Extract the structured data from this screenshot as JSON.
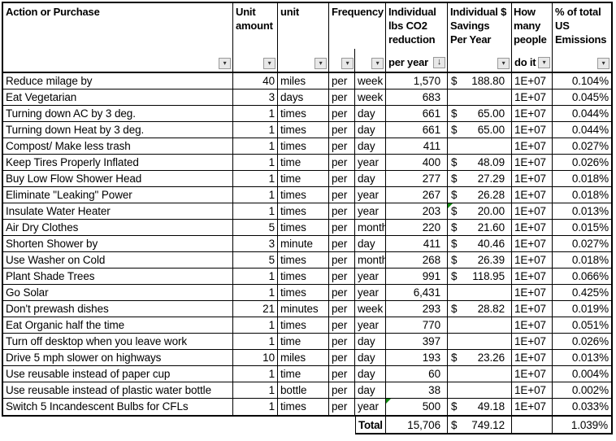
{
  "labels": {
    "per": "per",
    "dollar_sign": "$"
  },
  "icons": {
    "filter_arrow": "▾",
    "sort_arrow": "↓"
  },
  "colors": {
    "border": "#000000",
    "background": "#ffffff",
    "button_bg": "#e8e8e8",
    "button_border": "#999999",
    "button_arrow": "#333333",
    "error_indicator": "#0f8a0f"
  },
  "header": {
    "action": "Action or Purchase",
    "unit_amount": "Unit amount",
    "unit": "unit",
    "frequency": "Frequency",
    "co2_top": "Individual lbs CO2 reduction",
    "co2_bottom": "per year",
    "dollar": "Individual $ Savings Per Year",
    "people_top": "How many people",
    "people_bottom": "do it",
    "emissions": "% of total US Emissions"
  },
  "rows": [
    {
      "action": "Reduce milage by",
      "amount": "40",
      "unit": "miles",
      "freq": "week",
      "co2": "1,570",
      "dollar": "188.80",
      "people": "1E+07",
      "pct": "0.104%"
    },
    {
      "action": "Eat Vegetarian",
      "amount": "3",
      "unit": "days",
      "freq": "week",
      "co2": "683",
      "dollar": "",
      "people": "1E+07",
      "pct": "0.045%"
    },
    {
      "action": "Turning down AC by 3 deg.",
      "amount": "1",
      "unit": "times",
      "freq": "day",
      "co2": "661",
      "dollar": "65.00",
      "people": "1E+07",
      "pct": "0.044%"
    },
    {
      "action": "Turning down Heat by 3 deg.",
      "amount": "1",
      "unit": "times",
      "freq": "day",
      "co2": "661",
      "dollar": "65.00",
      "people": "1E+07",
      "pct": "0.044%"
    },
    {
      "action": "Compost/ Make less trash",
      "amount": "1",
      "unit": "times",
      "freq": "day",
      "co2": "411",
      "dollar": "",
      "people": "1E+07",
      "pct": "0.027%"
    },
    {
      "action": "Keep Tires Properly Inflated",
      "amount": "1",
      "unit": "time",
      "freq": "year",
      "co2": "400",
      "dollar": "48.09",
      "people": "1E+07",
      "pct": "0.026%"
    },
    {
      "action": "Buy Low Flow Shower Head",
      "amount": "1",
      "unit": "time",
      "freq": "day",
      "co2": "277",
      "dollar": "27.29",
      "people": "1E+07",
      "pct": "0.018%"
    },
    {
      "action": "Eliminate \"Leaking\" Power",
      "amount": "1",
      "unit": "times",
      "freq": "year",
      "co2": "267",
      "dollar": "26.28",
      "people": "1E+07",
      "pct": "0.018%"
    },
    {
      "action": "Insulate Water Heater",
      "amount": "1",
      "unit": "times",
      "freq": "year",
      "co2": "203",
      "dollar": "20.00",
      "people": "1E+07",
      "pct": "0.013%",
      "corner": "dollar"
    },
    {
      "action": "Air Dry Clothes",
      "amount": "5",
      "unit": "times",
      "freq": "month",
      "co2": "220",
      "dollar": "21.60",
      "people": "1E+07",
      "pct": "0.015%"
    },
    {
      "action": "Shorten Shower by",
      "amount": "3",
      "unit": "minute",
      "freq": "day",
      "co2": "411",
      "dollar": "40.46",
      "people": "1E+07",
      "pct": "0.027%"
    },
    {
      "action": "Use Washer on Cold",
      "amount": "5",
      "unit": "times",
      "freq": "month",
      "co2": "268",
      "dollar": "26.39",
      "people": "1E+07",
      "pct": "0.018%"
    },
    {
      "action": "Plant Shade Trees",
      "amount": "1",
      "unit": "times",
      "freq": "year",
      "co2": "991",
      "dollar": "118.95",
      "people": "1E+07",
      "pct": "0.066%"
    },
    {
      "action": "Go Solar",
      "amount": "1",
      "unit": "times",
      "freq": "year",
      "co2": "6,431",
      "dollar": "",
      "people": "1E+07",
      "pct": "0.425%"
    },
    {
      "action": "Don't prewash dishes",
      "amount": "21",
      "unit": "minutes",
      "freq": "week",
      "co2": "293",
      "dollar": "28.82",
      "people": "1E+07",
      "pct": "0.019%"
    },
    {
      "action": "Eat Organic half the time",
      "amount": "1",
      "unit": "times",
      "freq": "year",
      "co2": "770",
      "dollar": "",
      "people": "1E+07",
      "pct": "0.051%"
    },
    {
      "action": "Turn off desktop when you leave work",
      "amount": "1",
      "unit": "time",
      "freq": "day",
      "co2": "397",
      "dollar": "",
      "people": "1E+07",
      "pct": "0.026%"
    },
    {
      "action": "Drive 5 mph slower on highways",
      "amount": "10",
      "unit": "miles",
      "freq": "day",
      "co2": "193",
      "dollar": "23.26",
      "people": "1E+07",
      "pct": "0.013%"
    },
    {
      "action": "Use reusable instead of paper cup",
      "amount": "1",
      "unit": "time",
      "freq": "day",
      "co2": "60",
      "dollar": "",
      "people": "1E+07",
      "pct": "0.004%"
    },
    {
      "action": "Use reusable instead of plastic water bottle",
      "amount": "1",
      "unit": "bottle",
      "freq": "day",
      "co2": "38",
      "dollar": "",
      "people": "1E+07",
      "pct": "0.002%"
    },
    {
      "action": "Switch 5 Incandescent Bulbs for CFLs",
      "amount": "1",
      "unit": "times",
      "freq": "year",
      "co2": "500",
      "dollar": "49.18",
      "people": "1E+07",
      "pct": "0.033%",
      "corner": "co2"
    }
  ],
  "total": {
    "label": "Total",
    "co2": "15,706",
    "dollar": "749.12",
    "pct": "1.039%"
  }
}
